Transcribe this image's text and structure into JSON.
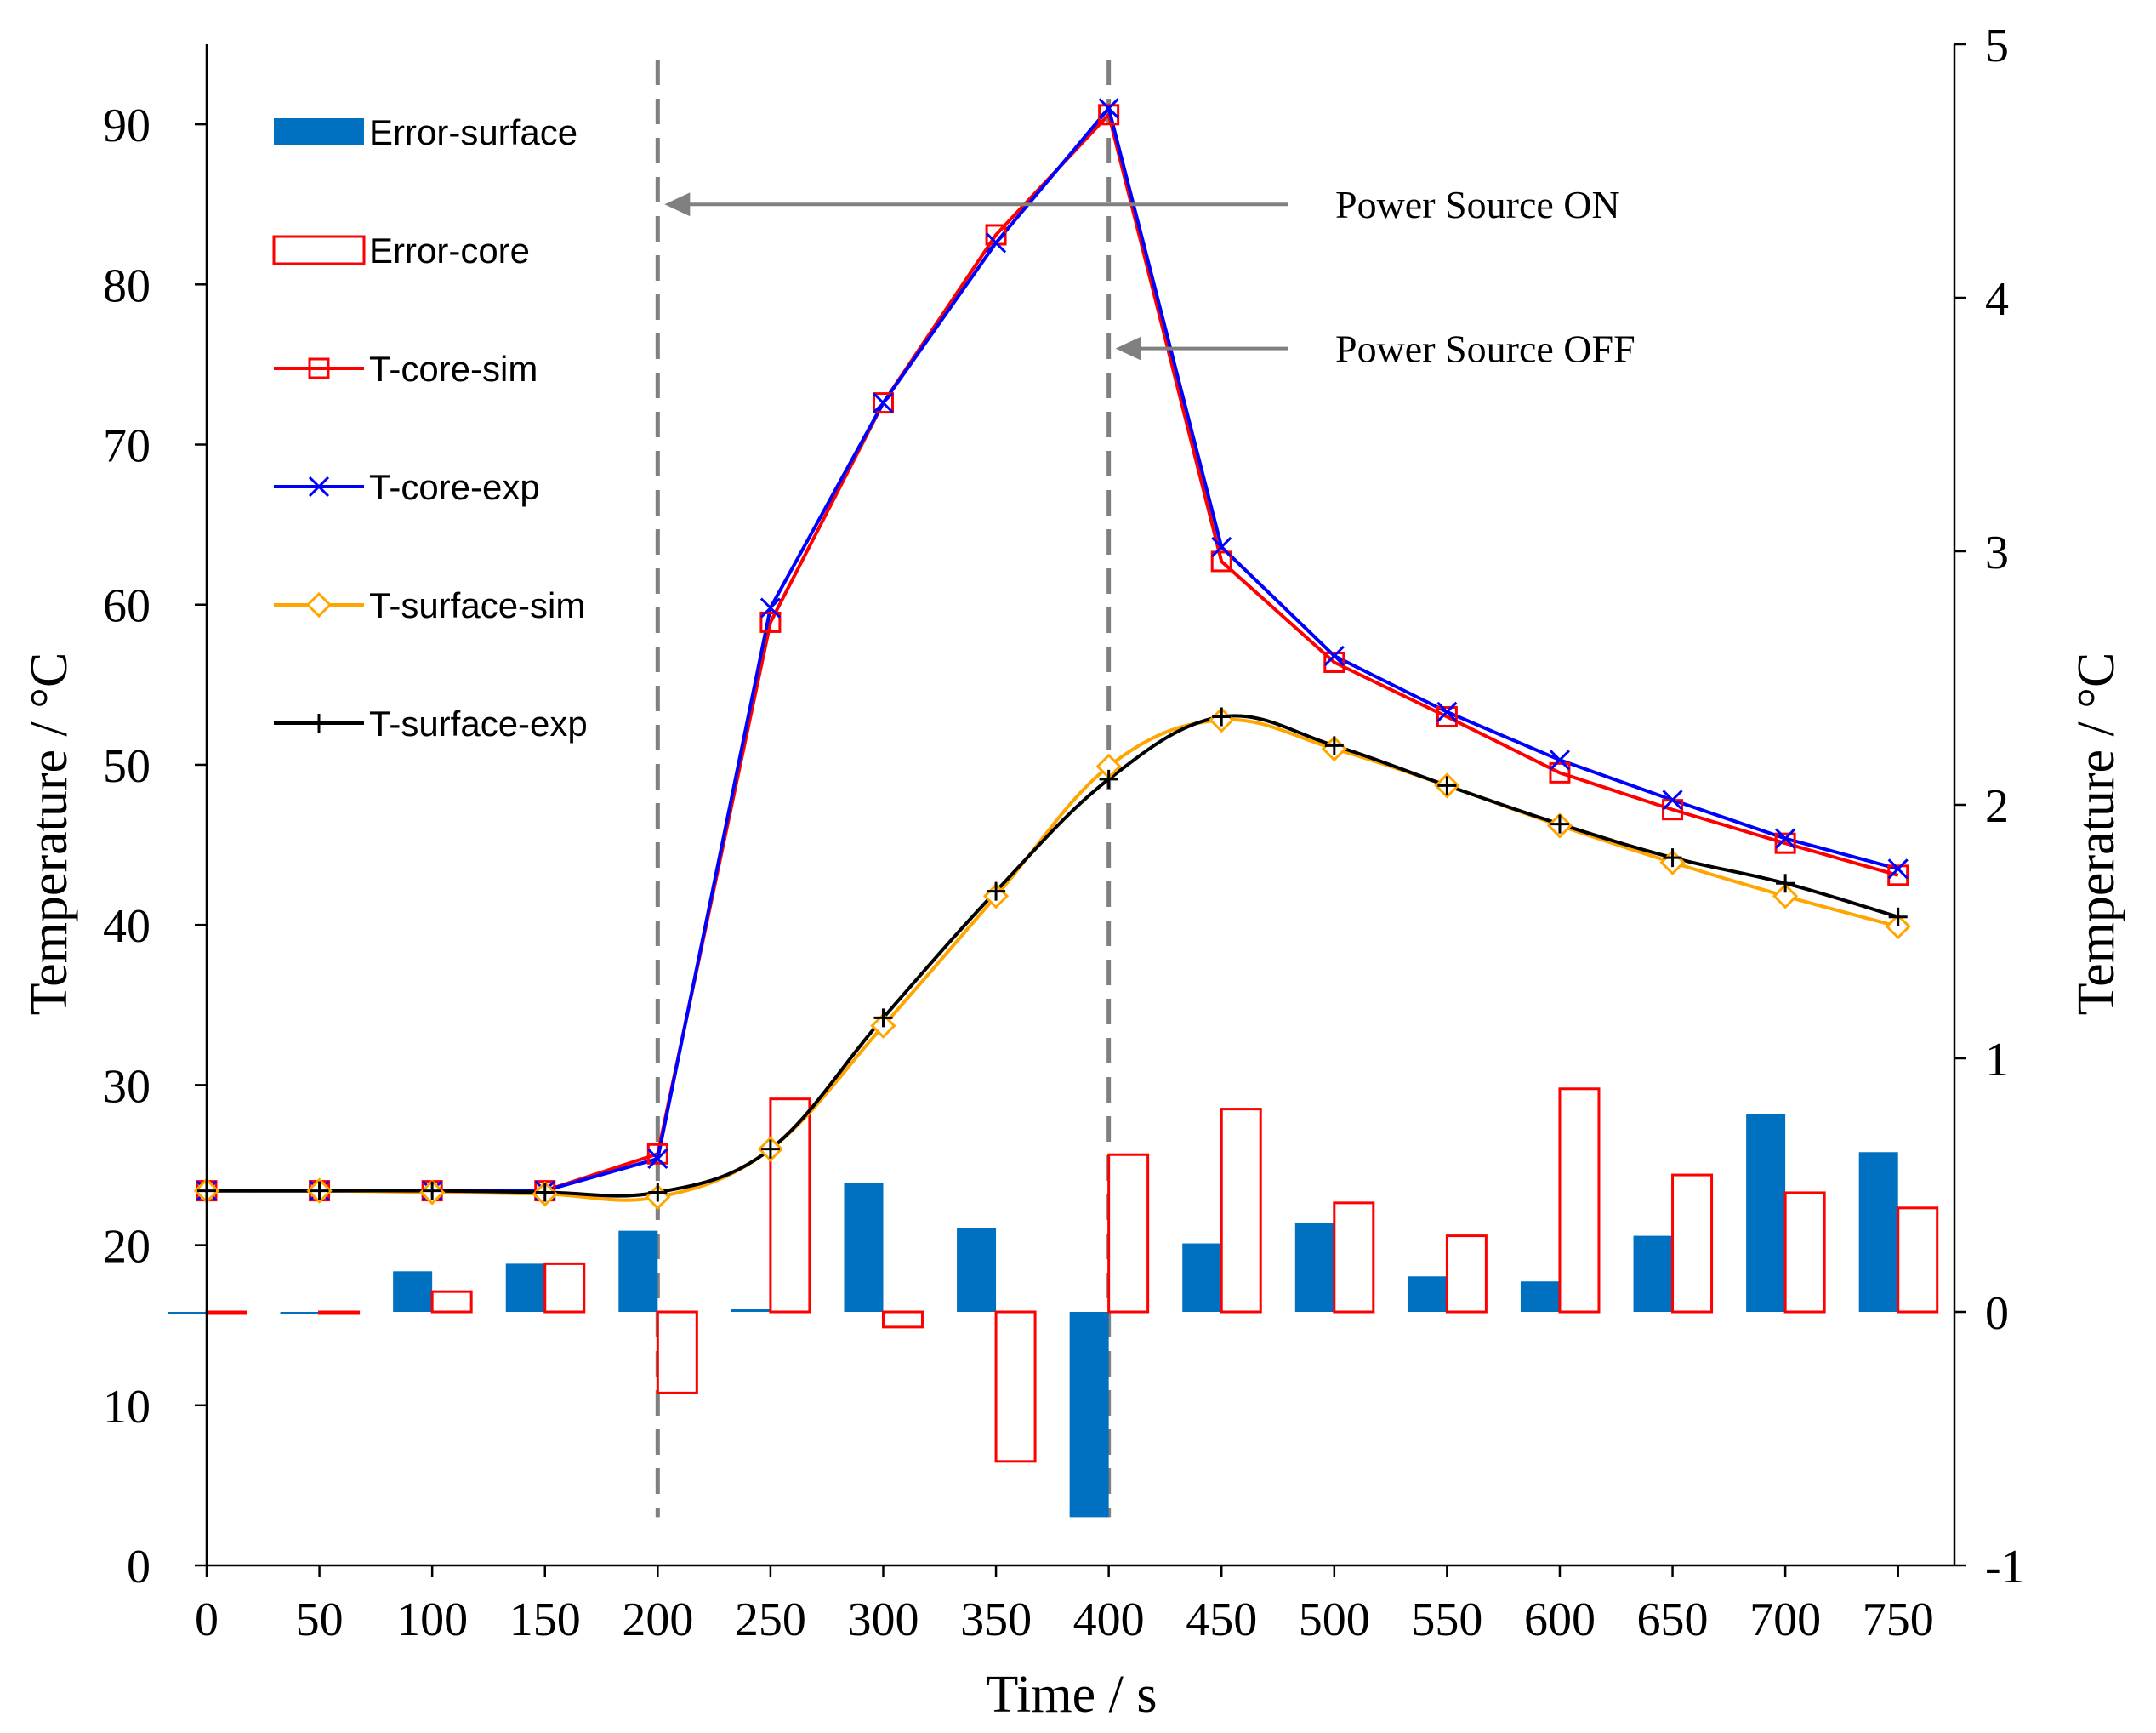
{
  "chart_data": {
    "type": "line+bar",
    "xlabel": "Time / s",
    "ylabel_left": "Temperature / °C",
    "ylabel_right": "Temperature / °C",
    "x_ticks": [
      0,
      50,
      100,
      150,
      200,
      250,
      300,
      350,
      400,
      450,
      500,
      550,
      600,
      650,
      700,
      750
    ],
    "y_left_ticks": [
      0,
      10,
      20,
      30,
      40,
      50,
      60,
      70,
      80,
      90
    ],
    "y_right_ticks": [
      -1,
      0,
      1,
      2,
      3,
      4,
      5
    ],
    "xlim": [
      0,
      775
    ],
    "ylim_left": [
      0,
      95
    ],
    "ylim_right": [
      -1,
      5
    ],
    "line_series": [
      {
        "name": "T-core-sim",
        "color": "#ff0000",
        "marker": "square",
        "x": [
          0,
          50,
          100,
          150,
          200,
          250,
          300,
          350,
          400,
          450,
          500,
          550,
          600,
          650,
          700,
          750
        ],
        "y": [
          23.4,
          23.4,
          23.4,
          23.4,
          25.7,
          58.9,
          72.6,
          83.1,
          90.6,
          62.7,
          56.4,
          53.0,
          49.5,
          47.2,
          45.1,
          43.1
        ]
      },
      {
        "name": "T-core-exp",
        "color": "#0000ff",
        "marker": "x",
        "x": [
          0,
          50,
          100,
          150,
          200,
          250,
          300,
          350,
          400,
          450,
          500,
          550,
          600,
          650,
          700,
          750
        ],
        "y": [
          23.4,
          23.4,
          23.4,
          23.4,
          25.4,
          59.8,
          72.6,
          82.6,
          91.0,
          63.6,
          56.8,
          53.3,
          50.3,
          47.8,
          45.4,
          43.5
        ]
      },
      {
        "name": "T-surface-sim",
        "color": "#ffa500",
        "marker": "diamond",
        "x": [
          0,
          50,
          100,
          150,
          200,
          250,
          300,
          350,
          400,
          450,
          500,
          550,
          600,
          650,
          700,
          750
        ],
        "y": [
          23.4,
          23.4,
          23.3,
          23.2,
          23.0,
          26.0,
          33.7,
          41.8,
          49.9,
          52.8,
          51.0,
          48.7,
          46.2,
          43.9,
          41.8,
          39.9
        ]
      },
      {
        "name": "T-surface-exp",
        "color": "#000000",
        "marker": "plus",
        "x": [
          0,
          50,
          100,
          150,
          200,
          250,
          300,
          350,
          400,
          450,
          500,
          550,
          600,
          650,
          700,
          750
        ],
        "y": [
          23.4,
          23.4,
          23.4,
          23.3,
          23.3,
          26.0,
          34.2,
          42.1,
          49.1,
          53.0,
          51.2,
          48.7,
          46.3,
          44.2,
          42.6,
          40.5
        ]
      }
    ],
    "bar_series": [
      {
        "name": "Error-surface",
        "color": "#0070c0",
        "fill": "filled",
        "x": [
          0,
          50,
          100,
          150,
          200,
          250,
          300,
          350,
          400,
          450,
          500,
          550,
          600,
          650,
          700,
          750
        ],
        "y": [
          0.0,
          -0.01,
          0.16,
          0.19,
          0.32,
          0.01,
          0.51,
          0.33,
          -0.81,
          0.27,
          0.35,
          0.14,
          0.12,
          0.3,
          0.78,
          0.63
        ]
      },
      {
        "name": "Error-core",
        "color": "#ff0000",
        "fill": "outline",
        "x": [
          0,
          50,
          100,
          150,
          200,
          250,
          300,
          350,
          400,
          450,
          500,
          550,
          600,
          650,
          700,
          750
        ],
        "y": [
          0.0,
          0.0,
          0.08,
          0.19,
          -0.32,
          0.84,
          -0.06,
          -0.59,
          0.62,
          0.8,
          0.43,
          0.3,
          0.88,
          0.54,
          0.47,
          0.41
        ]
      }
    ],
    "vlines": [
      200,
      400
    ],
    "annotations": [
      {
        "text": "Power Source ON",
        "arrow_to_x": 200,
        "at_y": 85
      },
      {
        "text": "Power Source OFF",
        "arrow_to_x": 400,
        "at_y": 76
      }
    ],
    "legend": [
      "Error-surface",
      "Error-core",
      "T-core-sim",
      "T-core-exp",
      "T-surface-sim",
      "T-surface-exp"
    ],
    "legend_position": "top-left"
  }
}
